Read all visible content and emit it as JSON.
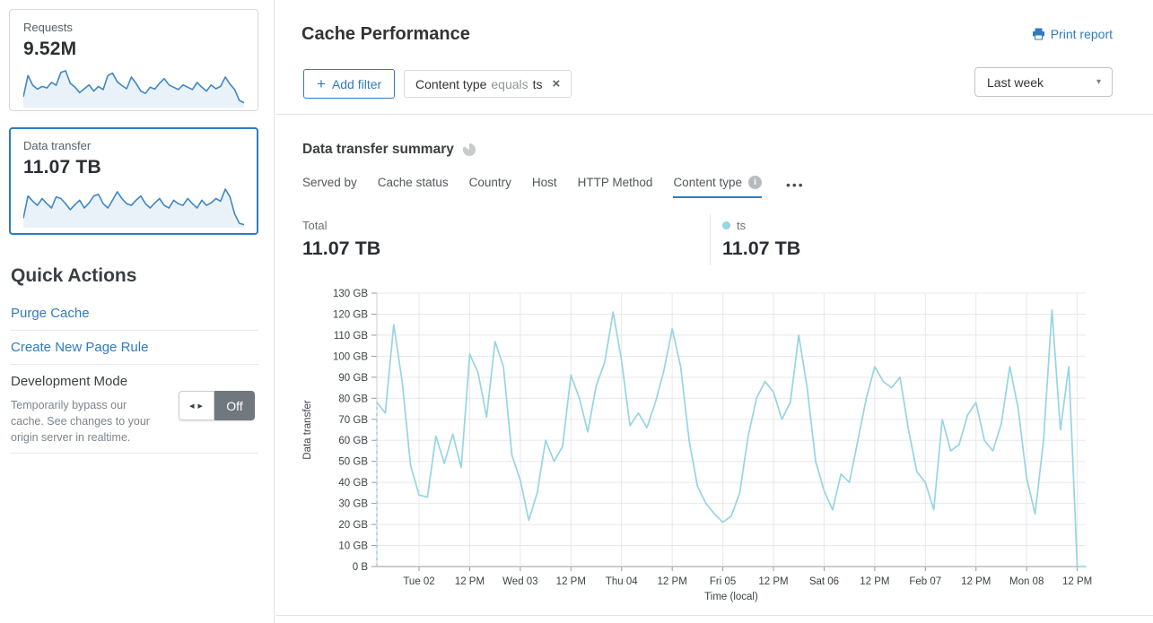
{
  "colors": {
    "accent": "#2f7bbf",
    "sparkline": "#3e87c4",
    "sparkline_fill": "#eaf2f9",
    "chart_line": "#96d5e2",
    "grid": "#e8e8e8",
    "axis": "#999999"
  },
  "icons": {
    "plus": "+",
    "close": "×",
    "caret_down": "▾",
    "ellipsis": "•••",
    "info": "i",
    "toggle_arrows": "◀ ▶"
  },
  "sidebar": {
    "requests_card": {
      "label": "Requests",
      "value": "9.52M",
      "spark": [
        25,
        80,
        55,
        45,
        52,
        48,
        62,
        55,
        88,
        92,
        60,
        50,
        36,
        46,
        56,
        40,
        52,
        44,
        80,
        86,
        64,
        54,
        46,
        76,
        60,
        40,
        34,
        50,
        45,
        60,
        72,
        56,
        50,
        44,
        56,
        50,
        44,
        62,
        50,
        40,
        56,
        46,
        52,
        76,
        58,
        44,
        16,
        10
      ]
    },
    "transfer_card": {
      "label": "Data transfer",
      "value": "11.07 TB",
      "spark": [
        20,
        72,
        60,
        50,
        66,
        54,
        44,
        70,
        66,
        54,
        40,
        52,
        62,
        44,
        56,
        72,
        76,
        54,
        44,
        62,
        82,
        66,
        54,
        50,
        62,
        72,
        54,
        44,
        56,
        66,
        50,
        44,
        62,
        54,
        50,
        66,
        54,
        44,
        62,
        50,
        56,
        66,
        60,
        88,
        70,
        30,
        8,
        5
      ]
    },
    "quick_actions": {
      "title": "Quick Actions",
      "links": [
        "Purge Cache",
        "Create New Page Rule"
      ],
      "dev_mode": {
        "title": "Development Mode",
        "description": "Temporarily bypass our cache. See changes to your origin server in realtime.",
        "toggle_label": "Off"
      }
    }
  },
  "header": {
    "title": "Cache Performance",
    "print_label": "Print report",
    "add_filter_label": "Add filter",
    "filter_chip": {
      "field": "Content type",
      "operator": "equals",
      "value": "ts"
    },
    "range_select": "Last week"
  },
  "summary": {
    "title": "Data transfer summary",
    "tabs": [
      {
        "label": "Served by",
        "active": false
      },
      {
        "label": "Cache status",
        "active": false
      },
      {
        "label": "Country",
        "active": false
      },
      {
        "label": "Host",
        "active": false
      },
      {
        "label": "HTTP Method",
        "active": false
      },
      {
        "label": "Content type",
        "active": true
      }
    ],
    "total_label": "Total",
    "total_value": "11.07 TB",
    "legend": {
      "name": "ts",
      "value": "11.07 TB",
      "color": "#96d5e2"
    }
  },
  "chart_data": {
    "type": "line",
    "title": "Data transfer summary",
    "xlabel": "Time (local)",
    "ylabel": "Data transfer",
    "ylim": [
      0,
      130
    ],
    "y_ticks": [
      "0 B",
      "10 GB",
      "20 GB",
      "30 GB",
      "40 GB",
      "50 GB",
      "60 GB",
      "70 GB",
      "80 GB",
      "90 GB",
      "100 GB",
      "110 GB",
      "120 GB",
      "130 GB"
    ],
    "x_tick_labels": [
      "Tue 02",
      "12 PM",
      "Wed 03",
      "12 PM",
      "Thu 04",
      "12 PM",
      "Fri 05",
      "12 PM",
      "Sat 06",
      "12 PM",
      "Feb 07",
      "12 PM",
      "Mon 08",
      "12 PM"
    ],
    "x_tick_indices": [
      5,
      11,
      17,
      23,
      29,
      35,
      41,
      47,
      53,
      59,
      65,
      71,
      77,
      83
    ],
    "x_step_hours": 2,
    "grid": true,
    "legend_position": "top-right",
    "leading_dashed_from_zero": true,
    "series": [
      {
        "name": "ts",
        "total": "11.07 TB",
        "unit": "GB",
        "color": "#96d5e2",
        "values": [
          78,
          73,
          115,
          88,
          48,
          34,
          33,
          62,
          49,
          63,
          47,
          101,
          92,
          71,
          107,
          95,
          53,
          41,
          22,
          35,
          60,
          50,
          57,
          91,
          80,
          64,
          86,
          97,
          121,
          98,
          67,
          73,
          66,
          78,
          93,
          113,
          95,
          60,
          38,
          30,
          25,
          21,
          24,
          35,
          62,
          80,
          88,
          83,
          70,
          78,
          110,
          85,
          50,
          36,
          27,
          44,
          40,
          60,
          80,
          95,
          88,
          85,
          90,
          65,
          45,
          40,
          27,
          70,
          55,
          58,
          72,
          78,
          60,
          55,
          68,
          95,
          75,
          42,
          25,
          60,
          122,
          65,
          95,
          0,
          0
        ]
      }
    ]
  }
}
